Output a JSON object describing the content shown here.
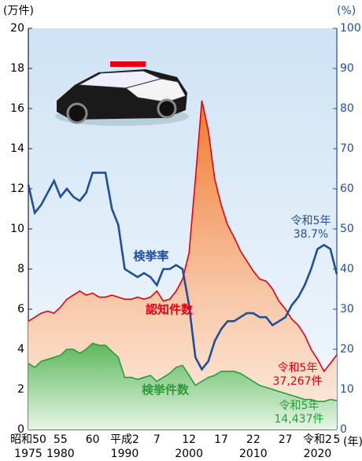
{
  "chart_data": {
    "type": "line",
    "x": [
      1975,
      1976,
      1977,
      1978,
      1979,
      1980,
      1981,
      1982,
      1983,
      1984,
      1985,
      1986,
      1987,
      1988,
      1989,
      1990,
      1991,
      1992,
      1993,
      1994,
      1995,
      1996,
      1997,
      1998,
      1999,
      2000,
      2001,
      2002,
      2003,
      2004,
      2005,
      2006,
      2007,
      2008,
      2009,
      2010,
      2011,
      2012,
      2013,
      2014,
      2015,
      2016,
      2017,
      2018,
      2019,
      2020,
      2021,
      2022,
      2023
    ],
    "series": [
      {
        "name": "認知件数",
        "color": "#e60012",
        "fill": "#f07a30",
        "values": [
          5.4,
          5.6,
          5.8,
          5.9,
          5.8,
          6.1,
          6.5,
          6.7,
          6.9,
          6.7,
          6.8,
          6.6,
          6.6,
          6.7,
          6.6,
          6.5,
          6.5,
          6.6,
          6.5,
          6.6,
          6.9,
          6.4,
          6.5,
          6.9,
          7.5,
          8.8,
          12.5,
          16.4,
          14.9,
          12.5,
          11.2,
          10.2,
          9.6,
          8.9,
          8.4,
          7.9,
          7.5,
          7.4,
          7.0,
          6.4,
          6.0,
          5.5,
          5.2,
          4.7,
          4.0,
          3.5,
          2.9,
          3.3,
          3.7267
        ]
      },
      {
        "name": "検挙件数",
        "color": "#2e9a3a",
        "fill": "#4caf50",
        "values": [
          3.3,
          3.1,
          3.4,
          3.5,
          3.6,
          3.7,
          4.0,
          4.0,
          3.8,
          4.0,
          4.3,
          4.2,
          4.2,
          3.9,
          3.6,
          2.6,
          2.6,
          2.5,
          2.6,
          2.7,
          2.4,
          2.6,
          2.8,
          3.1,
          3.2,
          2.7,
          2.2,
          2.4,
          2.6,
          2.7,
          2.9,
          2.9,
          2.9,
          2.8,
          2.6,
          2.4,
          2.2,
          2.1,
          2.0,
          1.9,
          1.8,
          1.7,
          1.6,
          1.5,
          1.5,
          1.4,
          1.4,
          1.5,
          1.4437
        ]
      },
      {
        "name": "検挙率",
        "color": "#1f4e9c",
        "axis": "y2",
        "values": [
          61,
          54,
          56,
          59,
          62,
          58,
          60,
          58,
          57,
          59,
          64,
          64,
          64,
          55,
          51,
          40,
          39,
          38,
          39,
          38,
          36,
          40,
          40,
          41,
          40,
          31,
          18,
          15,
          17,
          22,
          25,
          27,
          27,
          28,
          29,
          29,
          28,
          28,
          26,
          27,
          28,
          31,
          33,
          36,
          40,
          45,
          46,
          45,
          38.7
        ]
      }
    ],
    "annotations": [
      {
        "text": "令和5年",
        "value": 38.7,
        "label": "38.7%"
      },
      {
        "text": "令和5年",
        "value": 3.7267,
        "label": "37,267件"
      },
      {
        "text": "令和5年",
        "value": 1.4437,
        "label": "14,437件"
      }
    ],
    "ylabel": "(万件)",
    "y2label": "(%)",
    "xlabel": "(年)",
    "xlim": [
      1975,
      2023
    ],
    "ylim": [
      0,
      20
    ],
    "yticks": [
      0,
      2,
      4,
      6,
      8,
      10,
      12,
      14,
      16,
      18,
      20
    ],
    "y2lim": [
      0,
      100
    ],
    "y2ticks": [
      0,
      10,
      20,
      30,
      40,
      50,
      60,
      70,
      80,
      90,
      100
    ],
    "xticks": [
      {
        "value": 1975,
        "label": "昭和50"
      },
      {
        "value": 1980,
        "label": "55"
      },
      {
        "value": 1985,
        "label": "60"
      },
      {
        "value": 1990,
        "label": "平成2"
      },
      {
        "value": 1995,
        "label": "7"
      },
      {
        "value": 2000,
        "label": "12"
      },
      {
        "value": 2005,
        "label": "17"
      },
      {
        "value": 2010,
        "label": "22"
      },
      {
        "value": 2015,
        "label": "27"
      },
      {
        "value": 2020,
        "label": "令和2"
      },
      {
        "value": 2023,
        "label": "5"
      }
    ],
    "xticks2": [
      1975,
      1980,
      1990,
      2000,
      2010,
      2020
    ]
  }
}
